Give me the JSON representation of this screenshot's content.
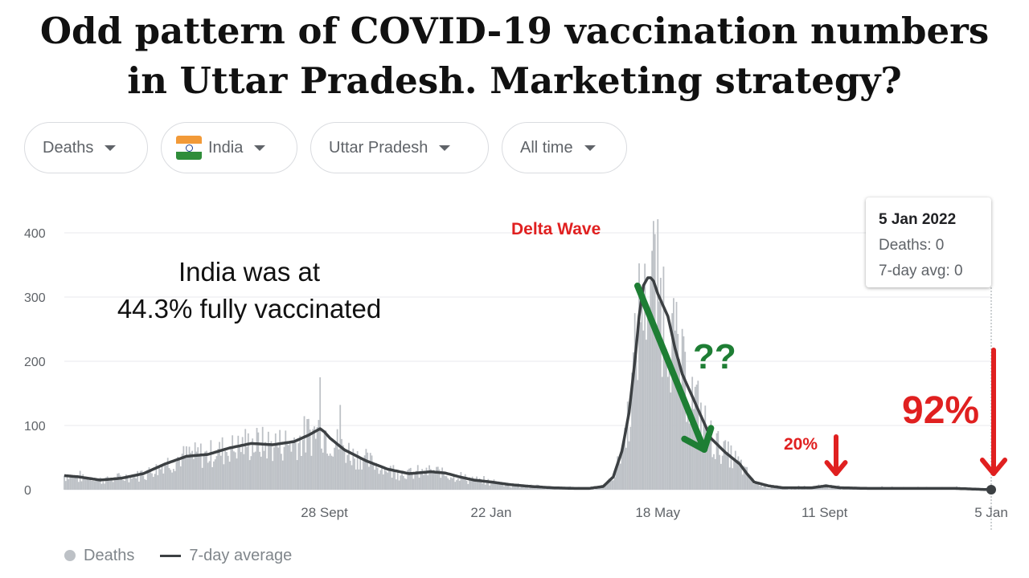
{
  "headline": {
    "line1": "Odd pattern of COVID-19 vaccination numbers",
    "line2": "in Uttar Pradesh. Marketing strategy?"
  },
  "filters": [
    {
      "label": "Deaths"
    },
    {
      "label": "India",
      "icon": "india-flag-icon"
    },
    {
      "label": "Uttar Pradesh"
    },
    {
      "label": "All time"
    }
  ],
  "tooltip": {
    "date": "5 Jan 2022",
    "deaths": "Deaths: 0",
    "avg": "7-day avg: 0"
  },
  "annotations": {
    "delta": "Delta Wave",
    "note_line1": "India was at",
    "note_line2": "44.3% fully vaccinated",
    "question": "??",
    "pct20": "20%",
    "pct92": "92%"
  },
  "legend": {
    "deaths": "Deaths",
    "avg": "7-day average"
  },
  "colors": {
    "bars": "#bdc1c6",
    "avg_line": "#3c4043",
    "grid": "#e8eaed",
    "annotation_red": "#e02020",
    "annotation_green": "#1e7e34"
  },
  "chart_data": {
    "type": "area",
    "ylim": [
      0,
      400
    ],
    "yticks": [
      0,
      100,
      200,
      300,
      400
    ],
    "grid": true,
    "legend_position": "bottom-left",
    "x_tick_labels": [
      {
        "label": "28 Sept",
        "day": 181
      },
      {
        "label": "22 Jan",
        "day": 297
      },
      {
        "label": "18 May",
        "day": 413
      },
      {
        "label": "11 Sept",
        "day": 529
      },
      {
        "label": "5 Jan",
        "day": 645
      }
    ],
    "series": [
      {
        "name": "7-day average",
        "x": [
          0,
          10,
          25,
          40,
          55,
          70,
          85,
          100,
          115,
          130,
          145,
          160,
          170,
          178,
          181,
          185,
          195,
          210,
          225,
          240,
          255,
          265,
          275,
          285,
          297,
          310,
          325,
          340,
          355,
          365,
          375,
          382,
          388,
          393,
          397,
          400,
          403,
          406,
          408,
          410,
          413,
          416,
          420,
          425,
          430,
          440,
          450,
          460,
          470,
          475,
          480,
          490,
          500,
          510,
          520,
          530,
          540,
          560,
          580,
          600,
          620,
          645
        ],
        "y": [
          22,
          20,
          15,
          18,
          25,
          40,
          52,
          55,
          65,
          72,
          70,
          75,
          85,
          95,
          90,
          80,
          62,
          45,
          32,
          25,
          28,
          26,
          20,
          15,
          12,
          8,
          5,
          3,
          2,
          2,
          5,
          20,
          60,
          120,
          200,
          270,
          318,
          330,
          330,
          325,
          305,
          290,
          270,
          220,
          180,
          130,
          80,
          58,
          40,
          25,
          12,
          6,
          3,
          3,
          3,
          6,
          3,
          2,
          2,
          2,
          2,
          0
        ]
      }
    ]
  }
}
